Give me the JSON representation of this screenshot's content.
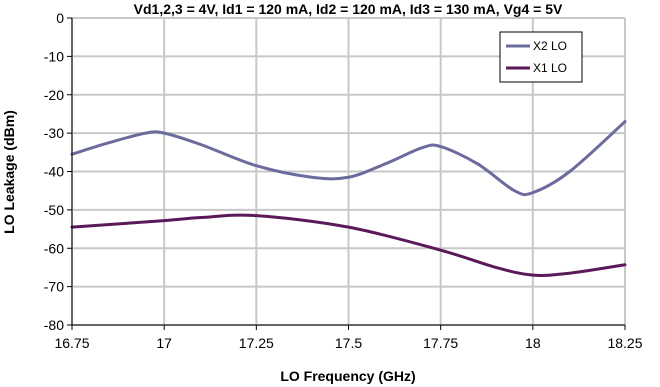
{
  "chart_data": {
    "type": "line",
    "title": "Vd1,2,3 = 4V, Id1 = 120 mA, Id2 = 120 mA, Id3 = 130 mA, Vg4 = 5V",
    "xlabel": "LO Frequency (GHz)",
    "ylabel": "LO Leakage (dBm)",
    "xlim": [
      16.75,
      18.25
    ],
    "ylim": [
      -80,
      0
    ],
    "xticks": [
      "16.75",
      "17",
      "17.25",
      "17.5",
      "17.75",
      "18",
      "18.25"
    ],
    "yticks": [
      "0",
      "-10",
      "-20",
      "-30",
      "-40",
      "-50",
      "-60",
      "-70",
      "-80"
    ],
    "grid": true,
    "legend_position": "top-right",
    "series": [
      {
        "name": "X2 LO",
        "color": "#6b6b9e",
        "x": [
          16.75,
          16.85,
          16.95,
          17.0,
          17.1,
          17.25,
          17.4,
          17.5,
          17.6,
          17.7,
          17.75,
          17.85,
          17.95,
          18.0,
          18.1,
          18.25
        ],
        "y": [
          -35.5,
          -32.5,
          -30.0,
          -30.0,
          -33.0,
          -38.5,
          -41.5,
          -41.5,
          -38.0,
          -33.8,
          -33.5,
          -38.0,
          -45.0,
          -45.5,
          -40.0,
          -27.0
        ]
      },
      {
        "name": "X1 LO",
        "color": "#5a1a5a",
        "x": [
          16.75,
          17.0,
          17.1,
          17.25,
          17.5,
          17.75,
          17.9,
          18.0,
          18.1,
          18.25
        ],
        "y": [
          -54.5,
          -52.8,
          -52.0,
          -51.5,
          -54.5,
          -60.5,
          -65.0,
          -67.0,
          -66.5,
          -64.3
        ]
      }
    ]
  }
}
